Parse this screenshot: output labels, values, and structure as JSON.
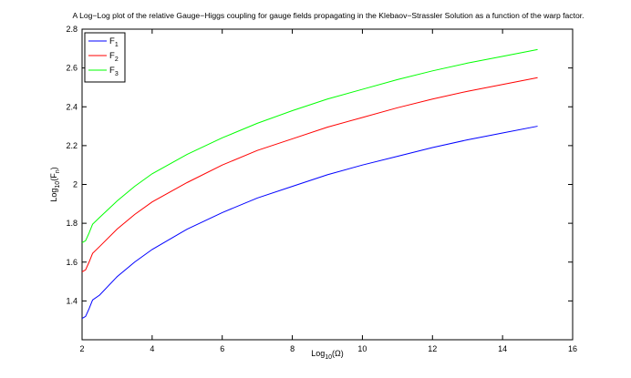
{
  "chart_data": {
    "type": "line",
    "title": "A Log−Log plot of the relative Gauge−Higgs coupling for gauge fields propagating in the Klebaov−Strassler Solution as a function of the warp factor.",
    "xlabel": {
      "base": "Log",
      "sub": "10",
      "rest": "(Ω)"
    },
    "ylabel": {
      "base": "Log",
      "sub": "10",
      "mid": "(F",
      "sub2": "n",
      "end": ")"
    },
    "xlim": [
      2,
      16
    ],
    "ylim": [
      1.2,
      2.8
    ],
    "xticks": [
      2,
      4,
      6,
      8,
      10,
      12,
      14,
      16
    ],
    "yticks": [
      1.4,
      1.6,
      1.8,
      2,
      2.2,
      2.4,
      2.6,
      2.8
    ],
    "xtick_labels": [
      "2",
      "4",
      "6",
      "8",
      "10",
      "12",
      "14",
      "16"
    ],
    "ytick_labels": [
      "1.4",
      "1.6",
      "1.8",
      "2",
      "2.2",
      "2.4",
      "2.6",
      "2.8"
    ],
    "grid": false,
    "legend_position": "top-left",
    "series": [
      {
        "name": "F",
        "sub": "1",
        "color": "#0000ff",
        "x": [
          2.0,
          2.1,
          2.2,
          2.3,
          2.5,
          3,
          3.5,
          4,
          5,
          6,
          7,
          8,
          9,
          10,
          11,
          12,
          13,
          14,
          15
        ],
        "y": [
          1.31,
          1.32,
          1.36,
          1.405,
          1.43,
          1.525,
          1.6,
          1.665,
          1.77,
          1.855,
          1.93,
          1.99,
          2.05,
          2.1,
          2.145,
          2.19,
          2.23,
          2.265,
          2.3
        ]
      },
      {
        "name": "F",
        "sub": "2",
        "color": "#ff0000",
        "x": [
          2.0,
          2.1,
          2.2,
          2.3,
          2.5,
          3,
          3.5,
          4,
          5,
          6,
          7,
          8,
          9,
          10,
          11,
          12,
          13,
          14,
          15
        ],
        "y": [
          1.55,
          1.56,
          1.6,
          1.645,
          1.68,
          1.77,
          1.845,
          1.91,
          2.01,
          2.1,
          2.175,
          2.235,
          2.295,
          2.345,
          2.395,
          2.44,
          2.48,
          2.515,
          2.55
        ]
      },
      {
        "name": "F",
        "sub": "3",
        "color": "#00ff00",
        "x": [
          2.0,
          2.1,
          2.2,
          2.3,
          2.5,
          3,
          3.5,
          4,
          5,
          6,
          7,
          8,
          9,
          10,
          11,
          12,
          13,
          14,
          15
        ],
        "y": [
          1.7,
          1.71,
          1.75,
          1.795,
          1.83,
          1.915,
          1.99,
          2.055,
          2.155,
          2.24,
          2.315,
          2.38,
          2.44,
          2.49,
          2.54,
          2.585,
          2.625,
          2.66,
          2.695
        ]
      }
    ]
  }
}
